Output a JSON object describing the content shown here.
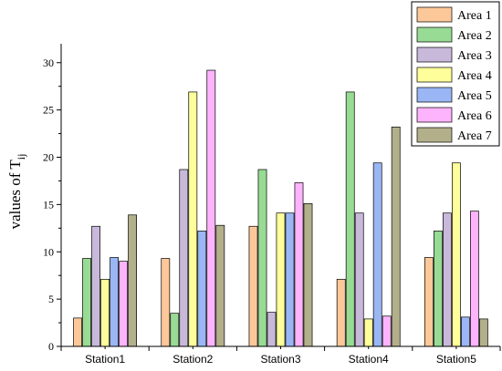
{
  "chart_data": {
    "type": "bar",
    "title": "",
    "xlabel": "",
    "ylabel": "values of T",
    "ylabel_subscript": "ij",
    "ylim": [
      0,
      32
    ],
    "yticks": [
      0,
      5,
      10,
      15,
      20,
      25,
      30
    ],
    "grid": false,
    "legend_position": "top-right",
    "categories": [
      "Station1",
      "Station2",
      "Station3",
      "Station4",
      "Station5"
    ],
    "series": [
      {
        "name": "Area 1",
        "color": "#FDC899",
        "values": [
          3.0,
          9.3,
          12.7,
          7.1,
          9.4
        ]
      },
      {
        "name": "Area 2",
        "color": "#98DB94",
        "values": [
          9.3,
          3.5,
          18.7,
          26.9,
          12.2
        ]
      },
      {
        "name": "Area 3",
        "color": "#C8B9DA",
        "values": [
          12.7,
          18.7,
          3.6,
          14.1,
          14.1
        ]
      },
      {
        "name": "Area 4",
        "color": "#FEFE9B",
        "values": [
          7.1,
          26.9,
          14.1,
          2.9,
          19.4
        ]
      },
      {
        "name": "Area 5",
        "color": "#9AB6F4",
        "values": [
          9.4,
          12.2,
          14.1,
          19.4,
          3.1
        ]
      },
      {
        "name": "Area 6",
        "color": "#FEB3FD",
        "values": [
          9.0,
          29.2,
          17.3,
          3.2,
          14.3
        ]
      },
      {
        "name": "Area 7",
        "color": "#B2AF8B",
        "values": [
          13.9,
          12.8,
          15.1,
          23.2,
          2.9
        ]
      }
    ]
  }
}
